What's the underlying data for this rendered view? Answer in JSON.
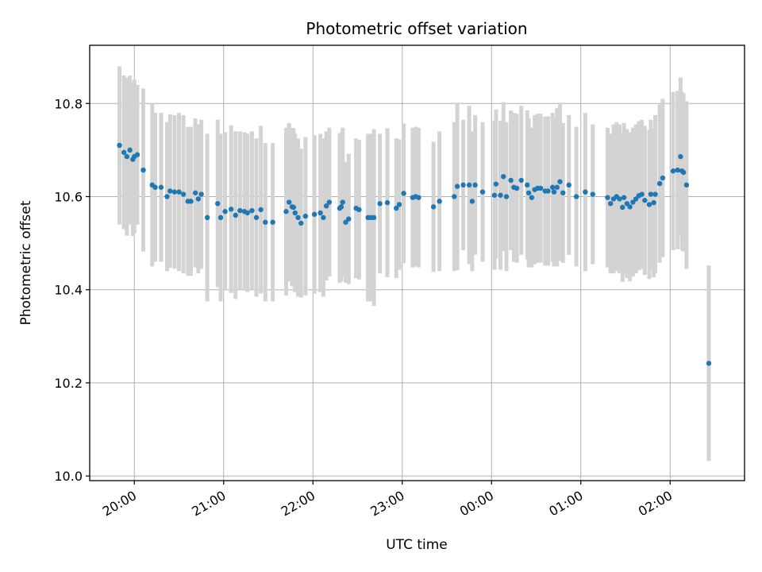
{
  "chart_data": {
    "type": "scatter",
    "title": "Photometric offset variation",
    "xlabel": "UTC time",
    "ylabel": "Photometric offset",
    "x_ticks": [
      "20:00",
      "21:00",
      "22:00",
      "23:00",
      "00:00",
      "01:00",
      "02:00"
    ],
    "y_ticks": [
      "10.0",
      "10.2",
      "10.4",
      "10.6",
      "10.8"
    ],
    "xlim": [
      "2023-01-01 19:30",
      "2023-01-02 02:50"
    ],
    "ylim": [
      9.99,
      10.925
    ],
    "grid": true,
    "colors": {
      "marker": "#1f77b4",
      "errorbar": "#d3d3d3",
      "grid": "#b0b0b0"
    },
    "series": [
      {
        "x": [
          "19:50",
          "19:53",
          "19:55",
          "19:57",
          "19:59",
          "20:00",
          "20:02",
          "20:06",
          "20:12",
          "20:14",
          "20:18",
          "20:22",
          "20:24",
          "20:27",
          "20:30",
          "20:33",
          "20:36",
          "20:38",
          "20:41",
          "20:43",
          "20:45",
          "20:49",
          "20:56",
          "20:58",
          "21:01",
          "21:05",
          "21:08",
          "21:11",
          "21:14",
          "21:16",
          "21:19",
          "21:22",
          "21:25",
          "21:28",
          "21:33",
          "21:42",
          "21:44",
          "21:46",
          "21:47",
          "21:48",
          "21:50",
          "21:52",
          "21:55",
          "22:01",
          "22:05",
          "22:07",
          "22:09",
          "22:11",
          "22:18",
          "22:19",
          "22:20",
          "22:22",
          "22:24",
          "22:29",
          "22:31",
          "22:37",
          "22:39",
          "22:41",
          "22:45",
          "22:50",
          "22:56",
          "22:58",
          "23:01",
          "23:07",
          "23:09",
          "23:11",
          "23:21",
          "23:25",
          "23:35",
          "23:37",
          "23:41",
          "23:45",
          "23:47",
          "23:49",
          "23:54",
          "24:02",
          "24:03",
          "24:06",
          "24:08",
          "24:10",
          "24:13",
          "24:15",
          "24:17",
          "24:20",
          "24:24",
          "24:25",
          "24:27",
          "24:29",
          "24:31",
          "24:33",
          "24:36",
          "24:38",
          "24:41",
          "24:42",
          "24:44",
          "24:46",
          "24:48",
          "24:52",
          "24:57",
          "25:03",
          "25:08",
          "25:18",
          "25:20",
          "25:22",
          "25:24",
          "25:26",
          "25:28",
          "25:29",
          "25:31",
          "25:33",
          "25:35",
          "25:37",
          "25:39",
          "25:41",
          "25:43",
          "25:46",
          "25:47",
          "25:49",
          "25:50",
          "25:53",
          "25:55",
          "26:02",
          "26:05",
          "26:07",
          "26:08",
          "26:09",
          "26:11",
          "26:26"
        ],
        "y": [
          10.71,
          10.695,
          10.686,
          10.7,
          10.68,
          10.686,
          10.69,
          10.657,
          10.625,
          10.62,
          10.62,
          10.6,
          10.612,
          10.61,
          10.61,
          10.605,
          10.59,
          10.59,
          10.608,
          10.595,
          10.605,
          10.555,
          10.585,
          10.555,
          10.568,
          10.573,
          10.56,
          10.57,
          10.568,
          10.565,
          10.57,
          10.555,
          10.572,
          10.545,
          10.545,
          10.568,
          10.588,
          10.578,
          10.577,
          10.565,
          10.555,
          10.543,
          10.558,
          10.562,
          10.565,
          10.555,
          10.58,
          10.588,
          10.575,
          10.578,
          10.588,
          10.545,
          10.552,
          10.575,
          10.572,
          10.555,
          10.555,
          10.555,
          10.585,
          10.587,
          10.575,
          10.583,
          10.607,
          10.598,
          10.6,
          10.598,
          10.578,
          10.59,
          10.6,
          10.622,
          10.625,
          10.625,
          10.59,
          10.625,
          10.61,
          10.603,
          10.627,
          10.603,
          10.643,
          10.6,
          10.635,
          10.62,
          10.618,
          10.635,
          10.625,
          10.608,
          10.598,
          10.615,
          10.618,
          10.618,
          10.612,
          10.612,
          10.62,
          10.61,
          10.62,
          10.632,
          10.608,
          10.625,
          10.6,
          10.61,
          10.605,
          10.598,
          10.585,
          10.595,
          10.6,
          10.595,
          10.577,
          10.598,
          10.585,
          10.578,
          10.588,
          10.595,
          10.602,
          10.605,
          10.592,
          10.583,
          10.605,
          10.587,
          10.605,
          10.628,
          10.64,
          10.655,
          10.657,
          10.686,
          10.655,
          10.652,
          10.625,
          10.242
        ],
        "err": [
          0.17,
          0.165,
          0.17,
          0.16,
          0.165,
          0.165,
          0.15,
          0.175,
          0.175,
          0.16,
          0.16,
          0.16,
          0.165,
          0.165,
          0.17,
          0.17,
          0.16,
          0.16,
          0.16,
          0.16,
          0.16,
          0.18,
          0.18,
          0.18,
          0.17,
          0.18,
          0.18,
          0.17,
          0.17,
          0.17,
          0.17,
          0.17,
          0.18,
          0.17,
          0.17,
          0.18,
          0.17,
          0.17,
          0.17,
          0.17,
          0.17,
          0.16,
          0.17,
          0.17,
          0.17,
          0.17,
          0.16,
          0.16,
          0.16,
          0.16,
          0.16,
          0.13,
          0.14,
          0.15,
          0.15,
          0.18,
          0.18,
          0.19,
          0.15,
          0.16,
          0.15,
          0.14,
          0.15,
          0.15,
          0.15,
          0.15,
          0.14,
          0.15,
          0.16,
          0.18,
          0.14,
          0.17,
          0.15,
          0.15,
          0.15,
          0.16,
          0.16,
          0.16,
          0.16,
          0.16,
          0.15,
          0.16,
          0.16,
          0.16,
          0.16,
          0.16,
          0.15,
          0.16,
          0.16,
          0.16,
          0.16,
          0.16,
          0.16,
          0.16,
          0.17,
          0.17,
          0.15,
          0.15,
          0.15,
          0.17,
          0.15,
          0.15,
          0.15,
          0.16,
          0.16,
          0.16,
          0.16,
          0.16,
          0.16,
          0.16,
          0.16,
          0.16,
          0.16,
          0.16,
          0.16,
          0.16,
          0.16,
          0.16,
          0.17,
          0.17,
          0.17,
          0.17,
          0.17,
          0.17,
          0.17,
          0.17,
          0.18,
          0.21
        ]
      }
    ]
  }
}
